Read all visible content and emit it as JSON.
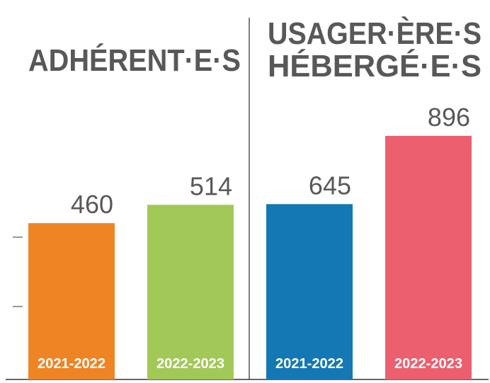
{
  "chart_data": [
    {
      "type": "bar",
      "title_lines": [
        "ADHÉRENT·E·S"
      ],
      "categories": [
        "2021-2022",
        "2022-2023"
      ],
      "values": [
        460,
        514
      ],
      "colors": [
        "#ef8424",
        "#a2c857"
      ],
      "ylim": [
        0,
        1000
      ]
    },
    {
      "type": "bar",
      "title_lines": [
        "USAGER·ÈRE·S",
        "HÉBERGÉ·E·S"
      ],
      "categories": [
        "2021-2022",
        "2022-2023"
      ],
      "values": [
        645,
        896
      ],
      "colors": [
        "#1478b4",
        "#ec5f6e"
      ],
      "ylim": [
        0,
        1250
      ]
    }
  ]
}
